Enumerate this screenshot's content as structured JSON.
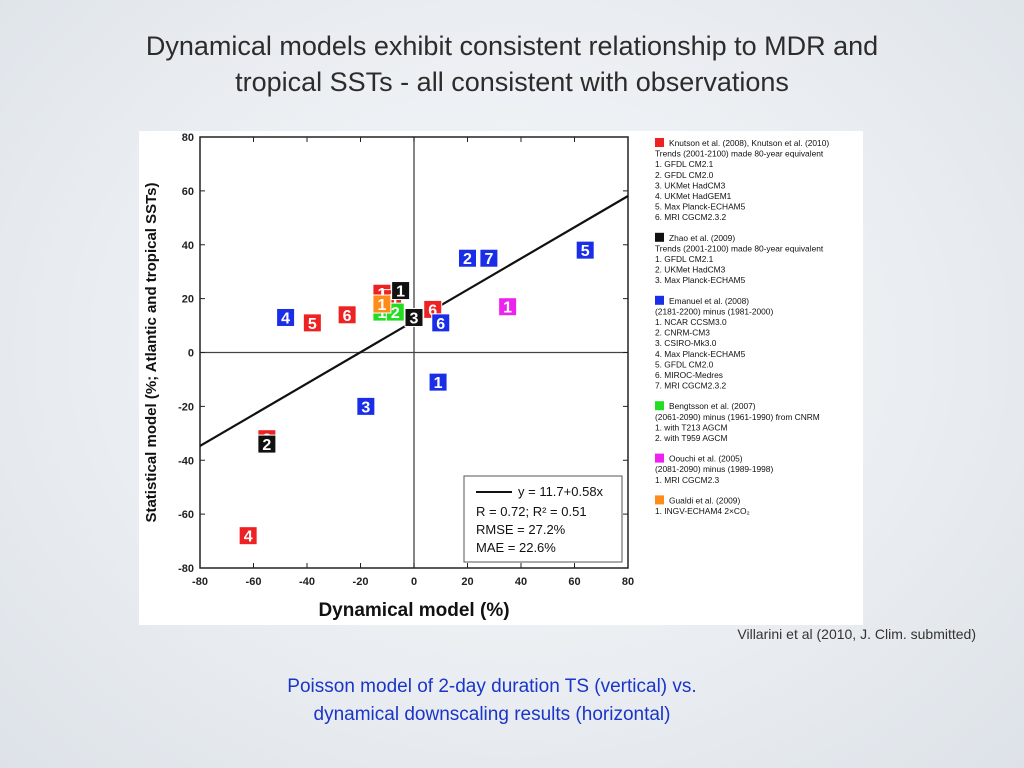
{
  "slide": {
    "title_line1": "Dynamical models exhibit consistent relationship to MDR and",
    "title_line2": "tropical SSTs - all consistent with observations",
    "citation": "Villarini et al (2010, J. Clim. submitted)",
    "caption_line1": "Poisson model of 2-day duration TS (vertical) vs.",
    "caption_line2": "dynamical downscaling results (horizontal)"
  },
  "chart_data": {
    "type": "scatter",
    "title": "",
    "xlabel": "Dynamical model (%)",
    "ylabel": "Statistical model (%; Atlantic and tropical SSTs)",
    "xlim": [
      -80,
      80
    ],
    "ylim": [
      -80,
      80
    ],
    "xticks": [
      "-80",
      "-60",
      "-40",
      "-20",
      "0",
      "20",
      "40",
      "60",
      "80"
    ],
    "yticks": [
      "80",
      "60",
      "40",
      "20",
      "0",
      "-20",
      "-40",
      "-60",
      "-80"
    ],
    "fit_line": {
      "intercept": 11.7,
      "slope": 0.58
    },
    "stats": {
      "equation": "y = 11.7+0.58x",
      "r": "R = 0.72; R² = 0.51",
      "rmse": "RMSE = 27.2%",
      "mae": "MAE = 22.6%"
    },
    "series": [
      {
        "color": "#ee2222",
        "points": [
          {
            "label": "1",
            "x": -12,
            "y": 22
          },
          {
            "label": "2",
            "x": -55,
            "y": -32
          },
          {
            "label": "3",
            "x": -8,
            "y": 20
          },
          {
            "label": "4",
            "x": -62,
            "y": -68
          },
          {
            "label": "5",
            "x": -38,
            "y": 11
          },
          {
            "label": "6",
            "x": -25,
            "y": 14
          },
          {
            "label": "6",
            "x": 7,
            "y": 16
          }
        ]
      },
      {
        "color": "#111111",
        "points": [
          {
            "label": "1",
            "x": -5,
            "y": 23
          },
          {
            "label": "2",
            "x": -55,
            "y": -34
          },
          {
            "label": "3",
            "x": 0,
            "y": 13
          }
        ]
      },
      {
        "color": "#1a2ee8",
        "points": [
          {
            "label": "1",
            "x": 9,
            "y": -11
          },
          {
            "label": "2",
            "x": 20,
            "y": 35
          },
          {
            "label": "3",
            "x": -18,
            "y": -20
          },
          {
            "label": "4",
            "x": -48,
            "y": 13
          },
          {
            "label": "5",
            "x": 64,
            "y": 38
          },
          {
            "label": "6",
            "x": 10,
            "y": 11
          },
          {
            "label": "7",
            "x": 28,
            "y": 35
          }
        ]
      },
      {
        "color": "#22dd22",
        "points": [
          {
            "label": "1",
            "x": -12,
            "y": 15
          },
          {
            "label": "2",
            "x": -7,
            "y": 15
          }
        ]
      },
      {
        "color": "#ee22ee",
        "points": [
          {
            "label": "1",
            "x": 35,
            "y": 17
          }
        ]
      },
      {
        "color": "#ff8c1a",
        "points": [
          {
            "label": "1",
            "x": -12,
            "y": 18
          }
        ]
      }
    ],
    "legend_position": "right",
    "legend": [
      {
        "color": "#ee2222",
        "lines": [
          "Knutson et al. (2008), Knutson et al. (2010)",
          "Trends (2001-2100) made 80-year equivalent",
          "1. GFDL CM2.1",
          "2. GFDL CM2.0",
          "3. UKMet HadCM3",
          "4. UKMet HadGEM1",
          "5. Max Planck-ECHAM5",
          "6. MRI CGCM2.3.2"
        ]
      },
      {
        "color": "#111111",
        "lines": [
          "Zhao et al. (2009)",
          "Trends (2001-2100) made 80-year equivalent",
          "1. GFDL CM2.1",
          "2. UKMet HadCM3",
          "3. Max Planck-ECHAM5"
        ]
      },
      {
        "color": "#1a2ee8",
        "lines": [
          "Emanuel et al. (2008)",
          "(2181-2200) minus (1981-2000)",
          "1. NCAR CCSM3.0",
          "2. CNRM-CM3",
          "3. CSIRO-Mk3.0",
          "4. Max Planck-ECHAM5",
          "5. GFDL CM2.0",
          "6. MIROC-Medres",
          "7. MRI CGCM2.3.2"
        ]
      },
      {
        "color": "#22dd22",
        "lines": [
          "Bengtsson et al. (2007)",
          "(2061-2090) minus (1961-1990) from CNRM",
          "1. with T213 AGCM",
          "2. with T959 AGCM"
        ]
      },
      {
        "color": "#ee22ee",
        "lines": [
          "Oouchi et al. (2005)",
          "(2081-2090) minus (1989-1998)",
          "1. MRI CGCM2.3"
        ]
      },
      {
        "color": "#ff8c1a",
        "lines": [
          "Gualdi et al. (2009)",
          "1. INGV-ECHAM4 2×CO₂"
        ]
      }
    ]
  }
}
